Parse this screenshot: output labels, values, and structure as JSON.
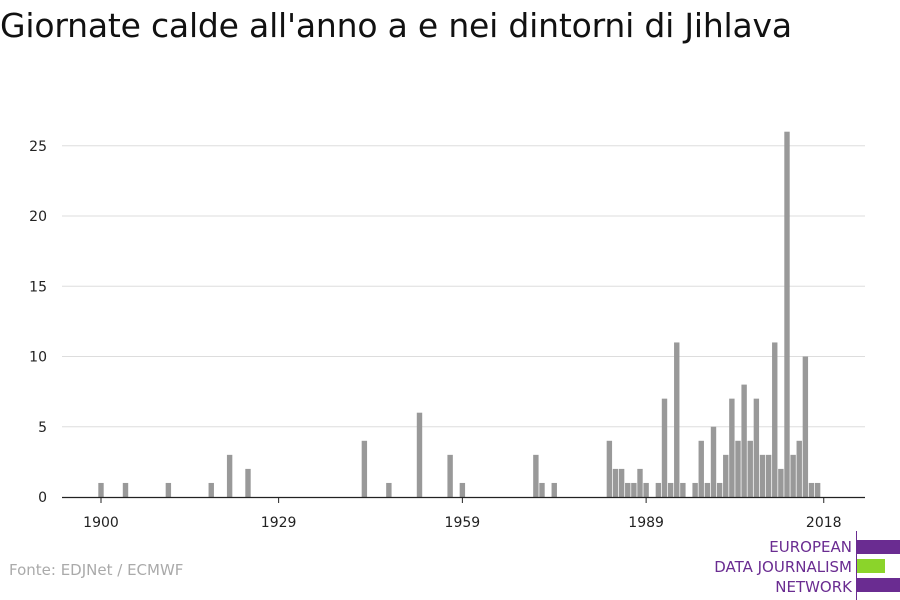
{
  "title": "Giornate calde all'anno a e nei dintorni di Jihlava",
  "source": "Fonte: EDJNet / ECMWF",
  "logo": {
    "lines": [
      "EUROPEAN",
      "DATA JOURNALISM",
      "NETWORK"
    ],
    "colors": {
      "purple": "#6a2c91",
      "green": "#8bd42a"
    }
  },
  "chart_data": {
    "type": "bar",
    "xlabel": "",
    "ylabel": "",
    "xlim": [
      1900,
      2018
    ],
    "ylim": [
      0,
      26
    ],
    "x_ticks": [
      1900,
      1929,
      1959,
      1989,
      2018
    ],
    "y_ticks": [
      0,
      5,
      10,
      15,
      20,
      25
    ],
    "grid": true,
    "bar_color": "#999999",
    "x": [
      1900,
      1904,
      1911,
      1918,
      1921,
      1924,
      1943,
      1947,
      1952,
      1957,
      1959,
      1971,
      1972,
      1974,
      1983,
      1984,
      1985,
      1986,
      1987,
      1988,
      1989,
      1991,
      1992,
      1993,
      1994,
      1995,
      1997,
      1998,
      1999,
      2000,
      2001,
      2002,
      2003,
      2004,
      2005,
      2006,
      2007,
      2008,
      2009,
      2010,
      2011,
      2012,
      2013,
      2014,
      2015,
      2016,
      2017
    ],
    "values": [
      1,
      1,
      1,
      1,
      3,
      2,
      4,
      1,
      6,
      3,
      1,
      3,
      1,
      1,
      4,
      2,
      2,
      1,
      1,
      2,
      1,
      1,
      7,
      1,
      11,
      1,
      1,
      4,
      1,
      5,
      1,
      3,
      7,
      4,
      8,
      4,
      7,
      3,
      3,
      11,
      2,
      26,
      3,
      4,
      10,
      1,
      1
    ]
  }
}
